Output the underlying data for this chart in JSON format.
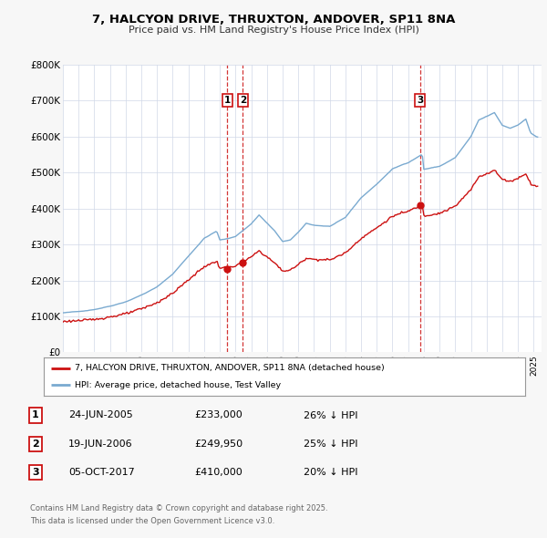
{
  "title": "7, HALCYON DRIVE, THRUXTON, ANDOVER, SP11 8NA",
  "subtitle": "Price paid vs. HM Land Registry's House Price Index (HPI)",
  "background_color": "#f7f7f7",
  "plot_bg_color": "#ffffff",
  "grid_color": "#d0d8e8",
  "hpi_color": "#7aaad0",
  "price_color": "#cc1111",
  "ylim": [
    0,
    800000
  ],
  "yticks": [
    0,
    100000,
    200000,
    300000,
    400000,
    500000,
    600000,
    700000,
    800000
  ],
  "ytick_labels": [
    "£0",
    "£100K",
    "£200K",
    "£300K",
    "£400K",
    "£500K",
    "£600K",
    "£700K",
    "£800K"
  ],
  "xlim_start": 1995.0,
  "xlim_end": 2025.5,
  "xticks": [
    1995,
    1996,
    1997,
    1998,
    1999,
    2000,
    2001,
    2002,
    2003,
    2004,
    2005,
    2006,
    2007,
    2008,
    2009,
    2010,
    2011,
    2012,
    2013,
    2014,
    2015,
    2016,
    2017,
    2018,
    2019,
    2020,
    2021,
    2022,
    2023,
    2024,
    2025
  ],
  "sale_markers": [
    {
      "label": "1",
      "year": 2005.48,
      "price": 233000,
      "date": "24-JUN-2005",
      "amount": "£233,000",
      "pct": "26% ↓ HPI"
    },
    {
      "label": "2",
      "year": 2006.46,
      "price": 249950,
      "date": "19-JUN-2006",
      "amount": "£249,950",
      "pct": "25% ↓ HPI"
    },
    {
      "label": "3",
      "year": 2017.75,
      "price": 410000,
      "date": "05-OCT-2017",
      "amount": "£410,000",
      "pct": "20% ↓ HPI"
    }
  ],
  "legend_house_label": "7, HALCYON DRIVE, THRUXTON, ANDOVER, SP11 8NA (detached house)",
  "legend_hpi_label": "HPI: Average price, detached house, Test Valley",
  "footer_line1": "Contains HM Land Registry data © Crown copyright and database right 2025.",
  "footer_line2": "This data is licensed under the Open Government Licence v3.0."
}
